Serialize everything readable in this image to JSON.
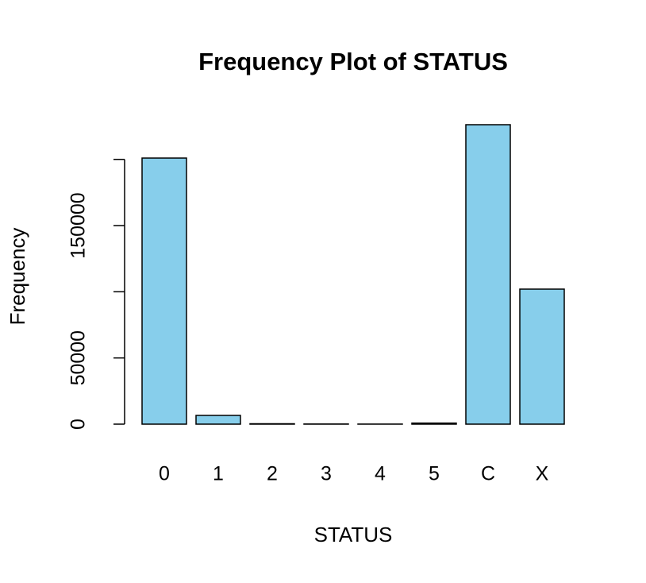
{
  "chart_data": {
    "type": "bar",
    "title": "Frequency Plot of STATUS",
    "x_label": "STATUS",
    "y_label": "Frequency",
    "categories": [
      "0",
      "1",
      "2",
      "3",
      "4",
      "5",
      "C",
      "X"
    ],
    "values": [
      201000,
      6600,
      300,
      100,
      50,
      800,
      226200,
      102000
    ],
    "color": "#87ceeb",
    "ylim": [
      0,
      230000
    ],
    "yticks": [
      0,
      50000,
      100000,
      150000,
      200000
    ]
  }
}
